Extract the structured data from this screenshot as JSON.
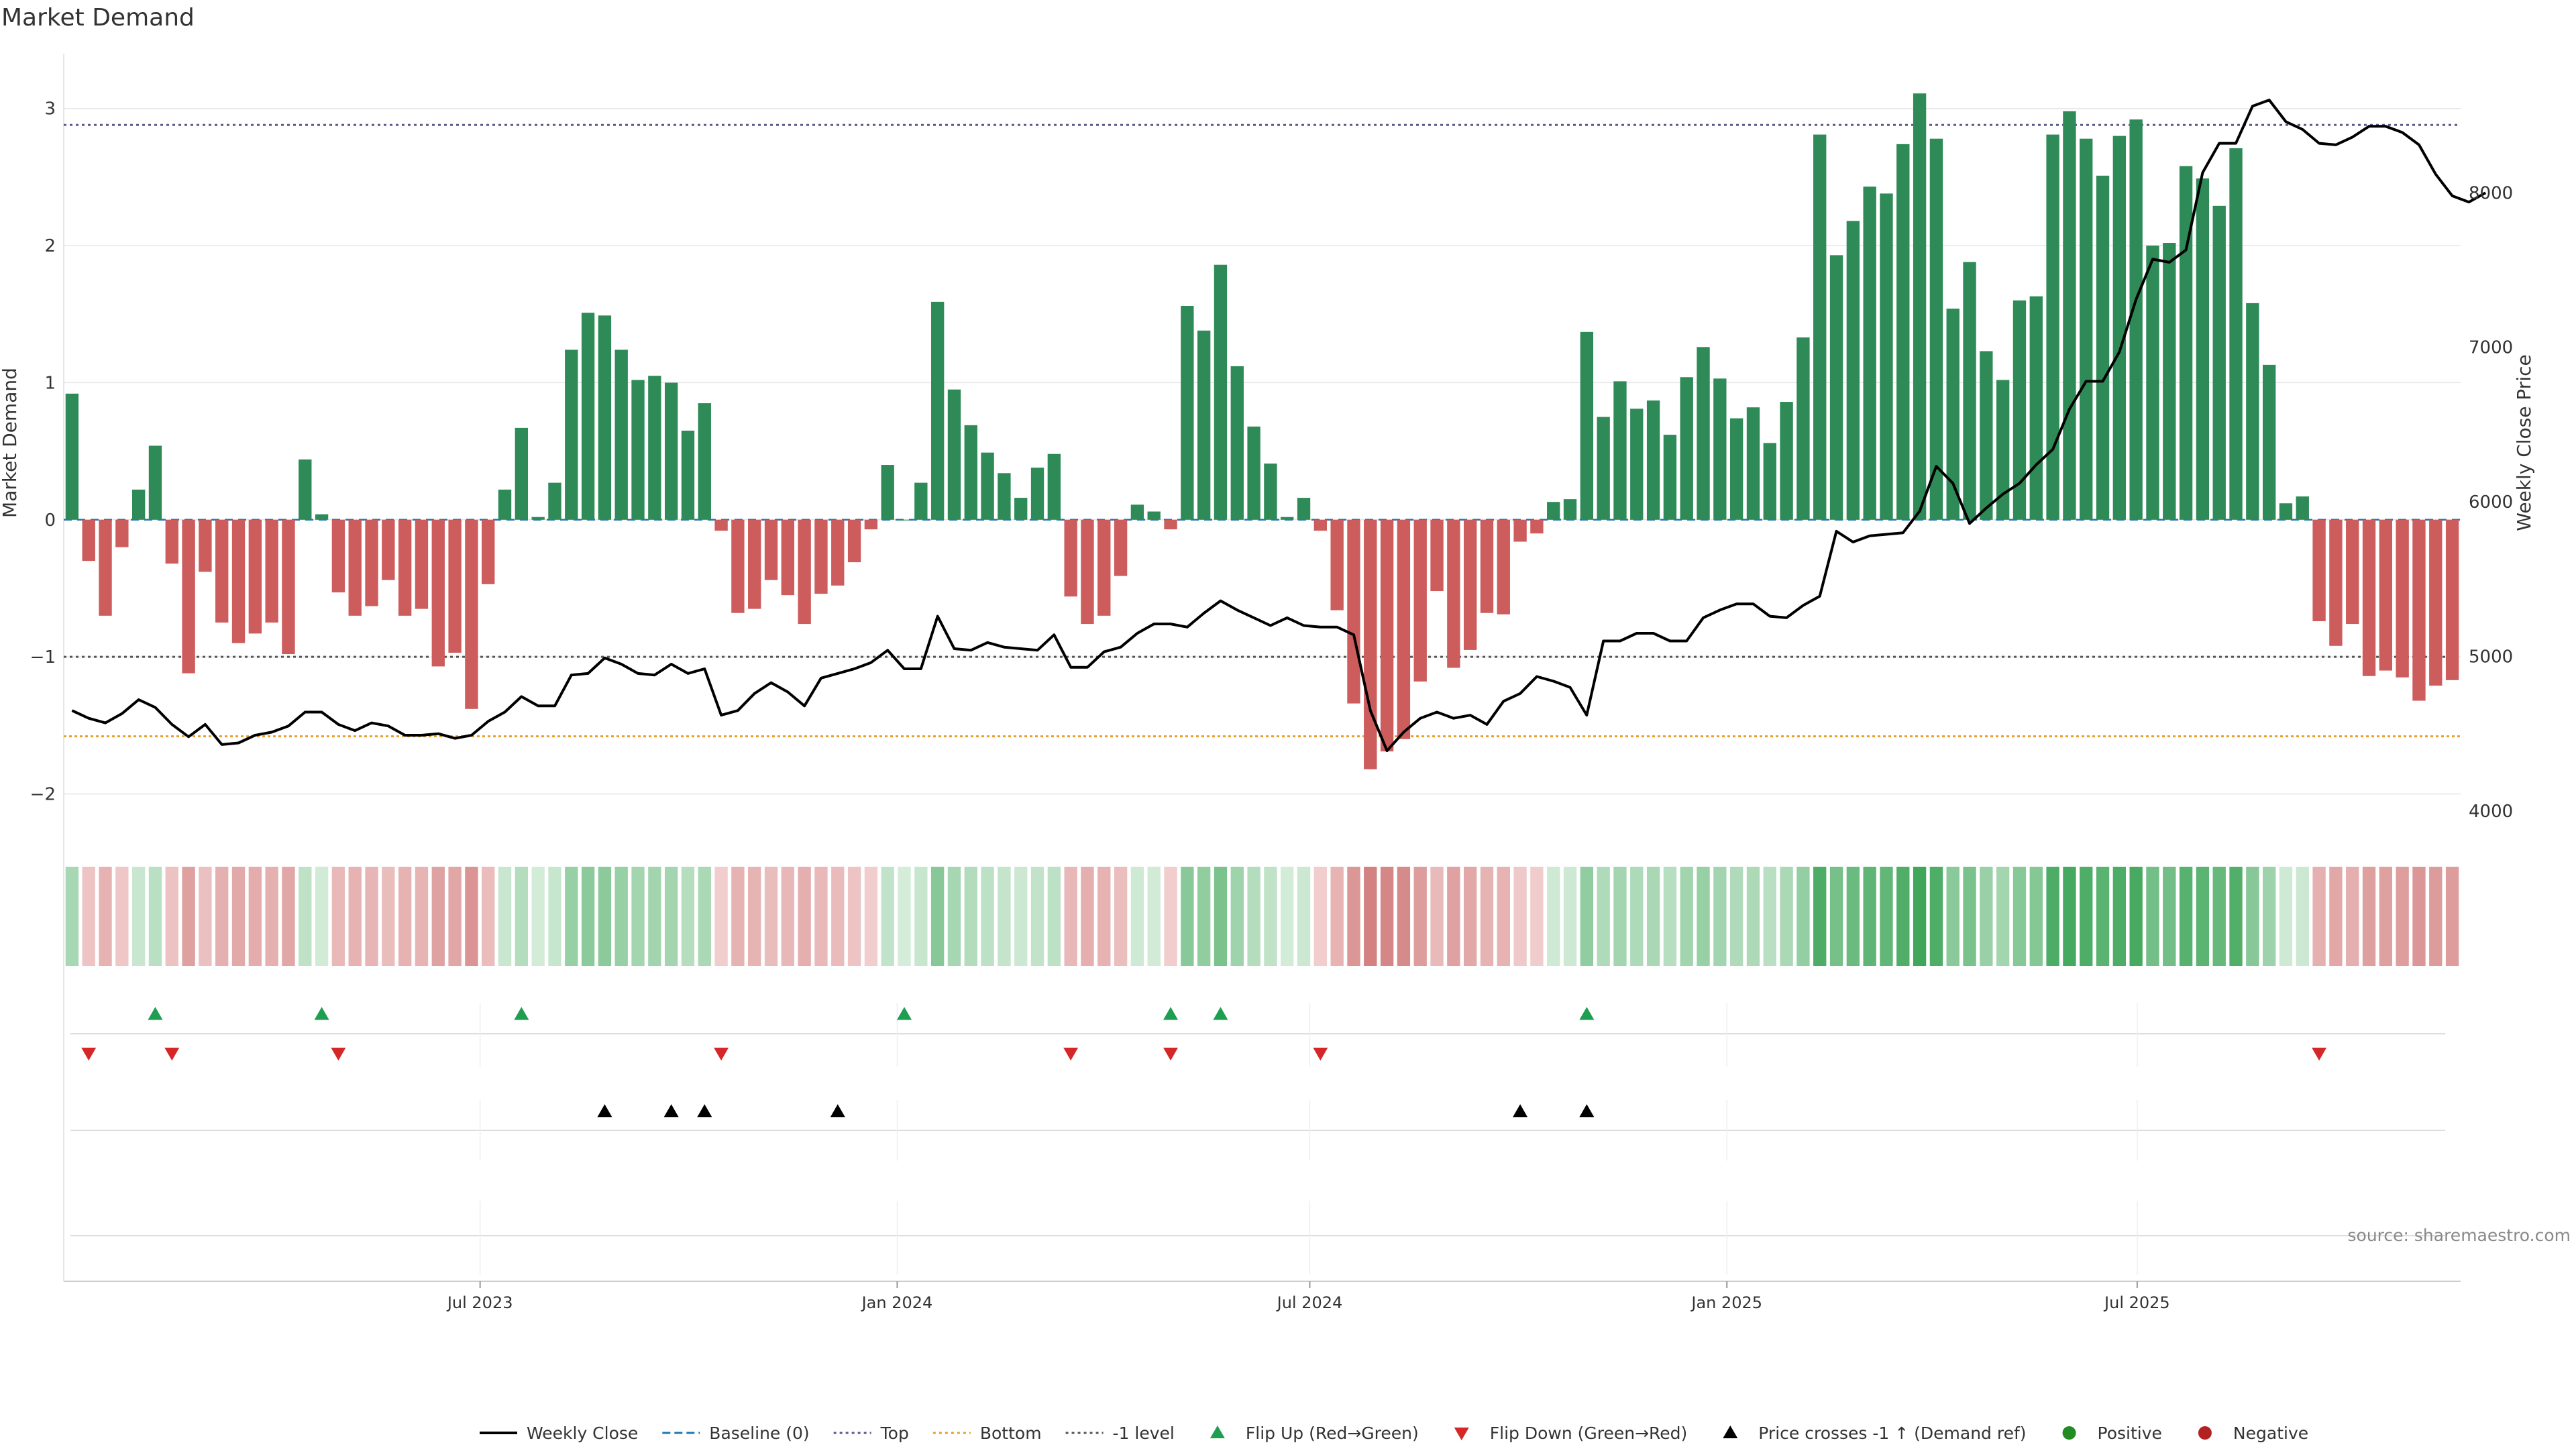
{
  "chart_data": {
    "type": "bar",
    "title": "Market Demand",
    "ylabel": "Market Demand",
    "y2label": "Weekly Close Price",
    "ylim": [
      -2.35,
      3.4
    ],
    "y2lim": [
      3800,
      8900
    ],
    "yticks": [
      -2,
      -1,
      0,
      1,
      2,
      3
    ],
    "y2ticks": [
      4000,
      5000,
      6000,
      7000,
      8000
    ],
    "x_axis": {
      "start": "2023-01-02",
      "end": "2025-11-17",
      "ticks": [
        {
          "date": "2023-07-01",
          "label": "Jul 2023"
        },
        {
          "date": "2024-01-01",
          "label": "Jan 2024"
        },
        {
          "date": "2024-07-01",
          "label": "Jul 2024"
        },
        {
          "date": "2025-01-01",
          "label": "Jan 2025"
        },
        {
          "date": "2025-07-01",
          "label": "Jul 2025"
        }
      ]
    },
    "reference_lines": {
      "top": 2.88,
      "bottom": -1.58,
      "minus_one": -1.0
    },
    "series": [
      {
        "name": "Market Demand",
        "values": [
          0.92,
          -0.3,
          -0.7,
          -0.2,
          0.22,
          0.54,
          -0.32,
          -1.12,
          -0.38,
          -0.75,
          -0.9,
          -0.83,
          -0.75,
          -0.98,
          0.44,
          0.04,
          -0.53,
          -0.7,
          -0.63,
          -0.44,
          -0.7,
          -0.65,
          -1.07,
          -0.97,
          -1.38,
          -0.47,
          0.22,
          0.67,
          0.02,
          0.27,
          1.24,
          1.51,
          1.49,
          1.24,
          1.02,
          1.05,
          1.0,
          0.65,
          0.85,
          -0.08,
          -0.68,
          -0.65,
          -0.44,
          -0.55,
          -0.76,
          -0.54,
          -0.48,
          -0.31,
          -0.07,
          0.4,
          0.0,
          0.27,
          1.59,
          0.95,
          0.69,
          0.49,
          0.34,
          0.16,
          0.38,
          0.48,
          -0.56,
          -0.76,
          -0.7,
          -0.41,
          0.11,
          0.06,
          -0.07,
          1.56,
          1.38,
          1.86,
          1.12,
          0.68,
          0.41,
          0.02,
          0.16,
          -0.08,
          -0.66,
          -1.34,
          -1.82,
          -1.69,
          -1.6,
          -1.18,
          -0.52,
          -1.08,
          -0.95,
          -0.68,
          -0.69,
          -0.16,
          -0.1,
          0.13,
          0.15,
          1.37,
          0.75,
          1.01,
          0.81,
          0.87,
          0.62,
          1.04,
          1.26,
          1.03,
          0.74,
          0.82,
          0.56,
          0.86,
          1.33,
          2.81,
          1.93,
          2.18,
          2.43,
          2.38,
          2.74,
          3.11,
          2.78,
          1.54,
          1.88,
          1.23,
          1.02,
          1.6,
          1.63,
          2.81,
          2.98,
          2.78,
          2.51,
          2.8,
          2.92,
          2.0,
          2.02,
          2.58,
          2.49,
          2.29,
          2.71,
          1.58,
          1.13,
          0.12,
          0.17,
          -0.74,
          -0.92,
          -0.76,
          -1.14,
          -1.1,
          -1.15,
          -1.32,
          -1.21,
          -1.17
        ]
      },
      {
        "name": "Weekly Close",
        "values": [
          4650,
          4600,
          4570,
          4630,
          4720,
          4670,
          4560,
          4480,
          4560,
          4430,
          4440,
          4490,
          4510,
          4550,
          4640,
          4640,
          4560,
          4520,
          4570,
          4550,
          4490,
          4490,
          4500,
          4470,
          4490,
          4580,
          4640,
          4740,
          4680,
          4680,
          4880,
          4890,
          4990,
          4950,
          4890,
          4880,
          4950,
          4890,
          4920,
          4620,
          4650,
          4760,
          4830,
          4770,
          4680,
          4860,
          4890,
          4920,
          4960,
          5040,
          4920,
          4920,
          5260,
          5050,
          5040,
          5090,
          5060,
          5050,
          5040,
          5140,
          4930,
          4930,
          5030,
          5060,
          5150,
          5210,
          5210,
          5190,
          5280,
          5360,
          5300,
          5250,
          5200,
          5250,
          5200,
          5190,
          5190,
          5140,
          4650,
          4390,
          4510,
          4600,
          4640,
          4600,
          4620,
          4560,
          4710,
          4760,
          4870,
          4840,
          4800,
          4620,
          5100,
          5100,
          5150,
          5150,
          5100,
          5100,
          5250,
          5300,
          5340,
          5340,
          5260,
          5250,
          5330,
          5390,
          5810,
          5740,
          5780,
          5790,
          5800,
          5940,
          6230,
          6120,
          5860,
          5960,
          6050,
          6120,
          6240,
          6340,
          6600,
          6780,
          6780,
          6970,
          7310,
          7570,
          7550,
          7630,
          8130,
          8320,
          8320,
          8560,
          8600,
          8460,
          8410,
          8320,
          8310,
          8360,
          8430,
          8430,
          8390,
          8310,
          8120,
          7980,
          7940,
          8000
        ],
        "weeks_offset": 0
      }
    ],
    "bar_color_positive": "#2e8b57",
    "bar_color_negative": "#cd5c5c",
    "flip_up_weeks": [
      5,
      15,
      27,
      50,
      66,
      69,
      91
    ],
    "flip_down_weeks": [
      1,
      6,
      16,
      39,
      60,
      66,
      75,
      135
    ],
    "price_cross_weeks": [
      32,
      36,
      38,
      46,
      87,
      91
    ]
  },
  "legend": [
    {
      "label": "Weekly Close",
      "type": "line",
      "color": "#000000"
    },
    {
      "label": "Baseline (0)",
      "type": "dash",
      "color": "#1f77b4"
    },
    {
      "label": "Top",
      "type": "dot",
      "color": "#5a5a8c"
    },
    {
      "label": "Bottom",
      "type": "dot",
      "color": "#e6a02e"
    },
    {
      "label": "-1 level",
      "type": "dot",
      "color": "#555555"
    },
    {
      "label": "Flip Up (Red→Green)",
      "type": "tri-up",
      "color": "#1e9e50"
    },
    {
      "label": "Flip Down (Green→Red)",
      "type": "tri-down",
      "color": "#d62728"
    },
    {
      "label": "Price crosses -1 ↑ (Demand ref)",
      "type": "tri-up",
      "color": "#000000"
    },
    {
      "label": "Positive",
      "type": "dot-marker",
      "color": "#228b22"
    },
    {
      "label": "Negative",
      "type": "dot-marker",
      "color": "#b22222"
    }
  ],
  "source_text": "source: sharemaestro.com"
}
